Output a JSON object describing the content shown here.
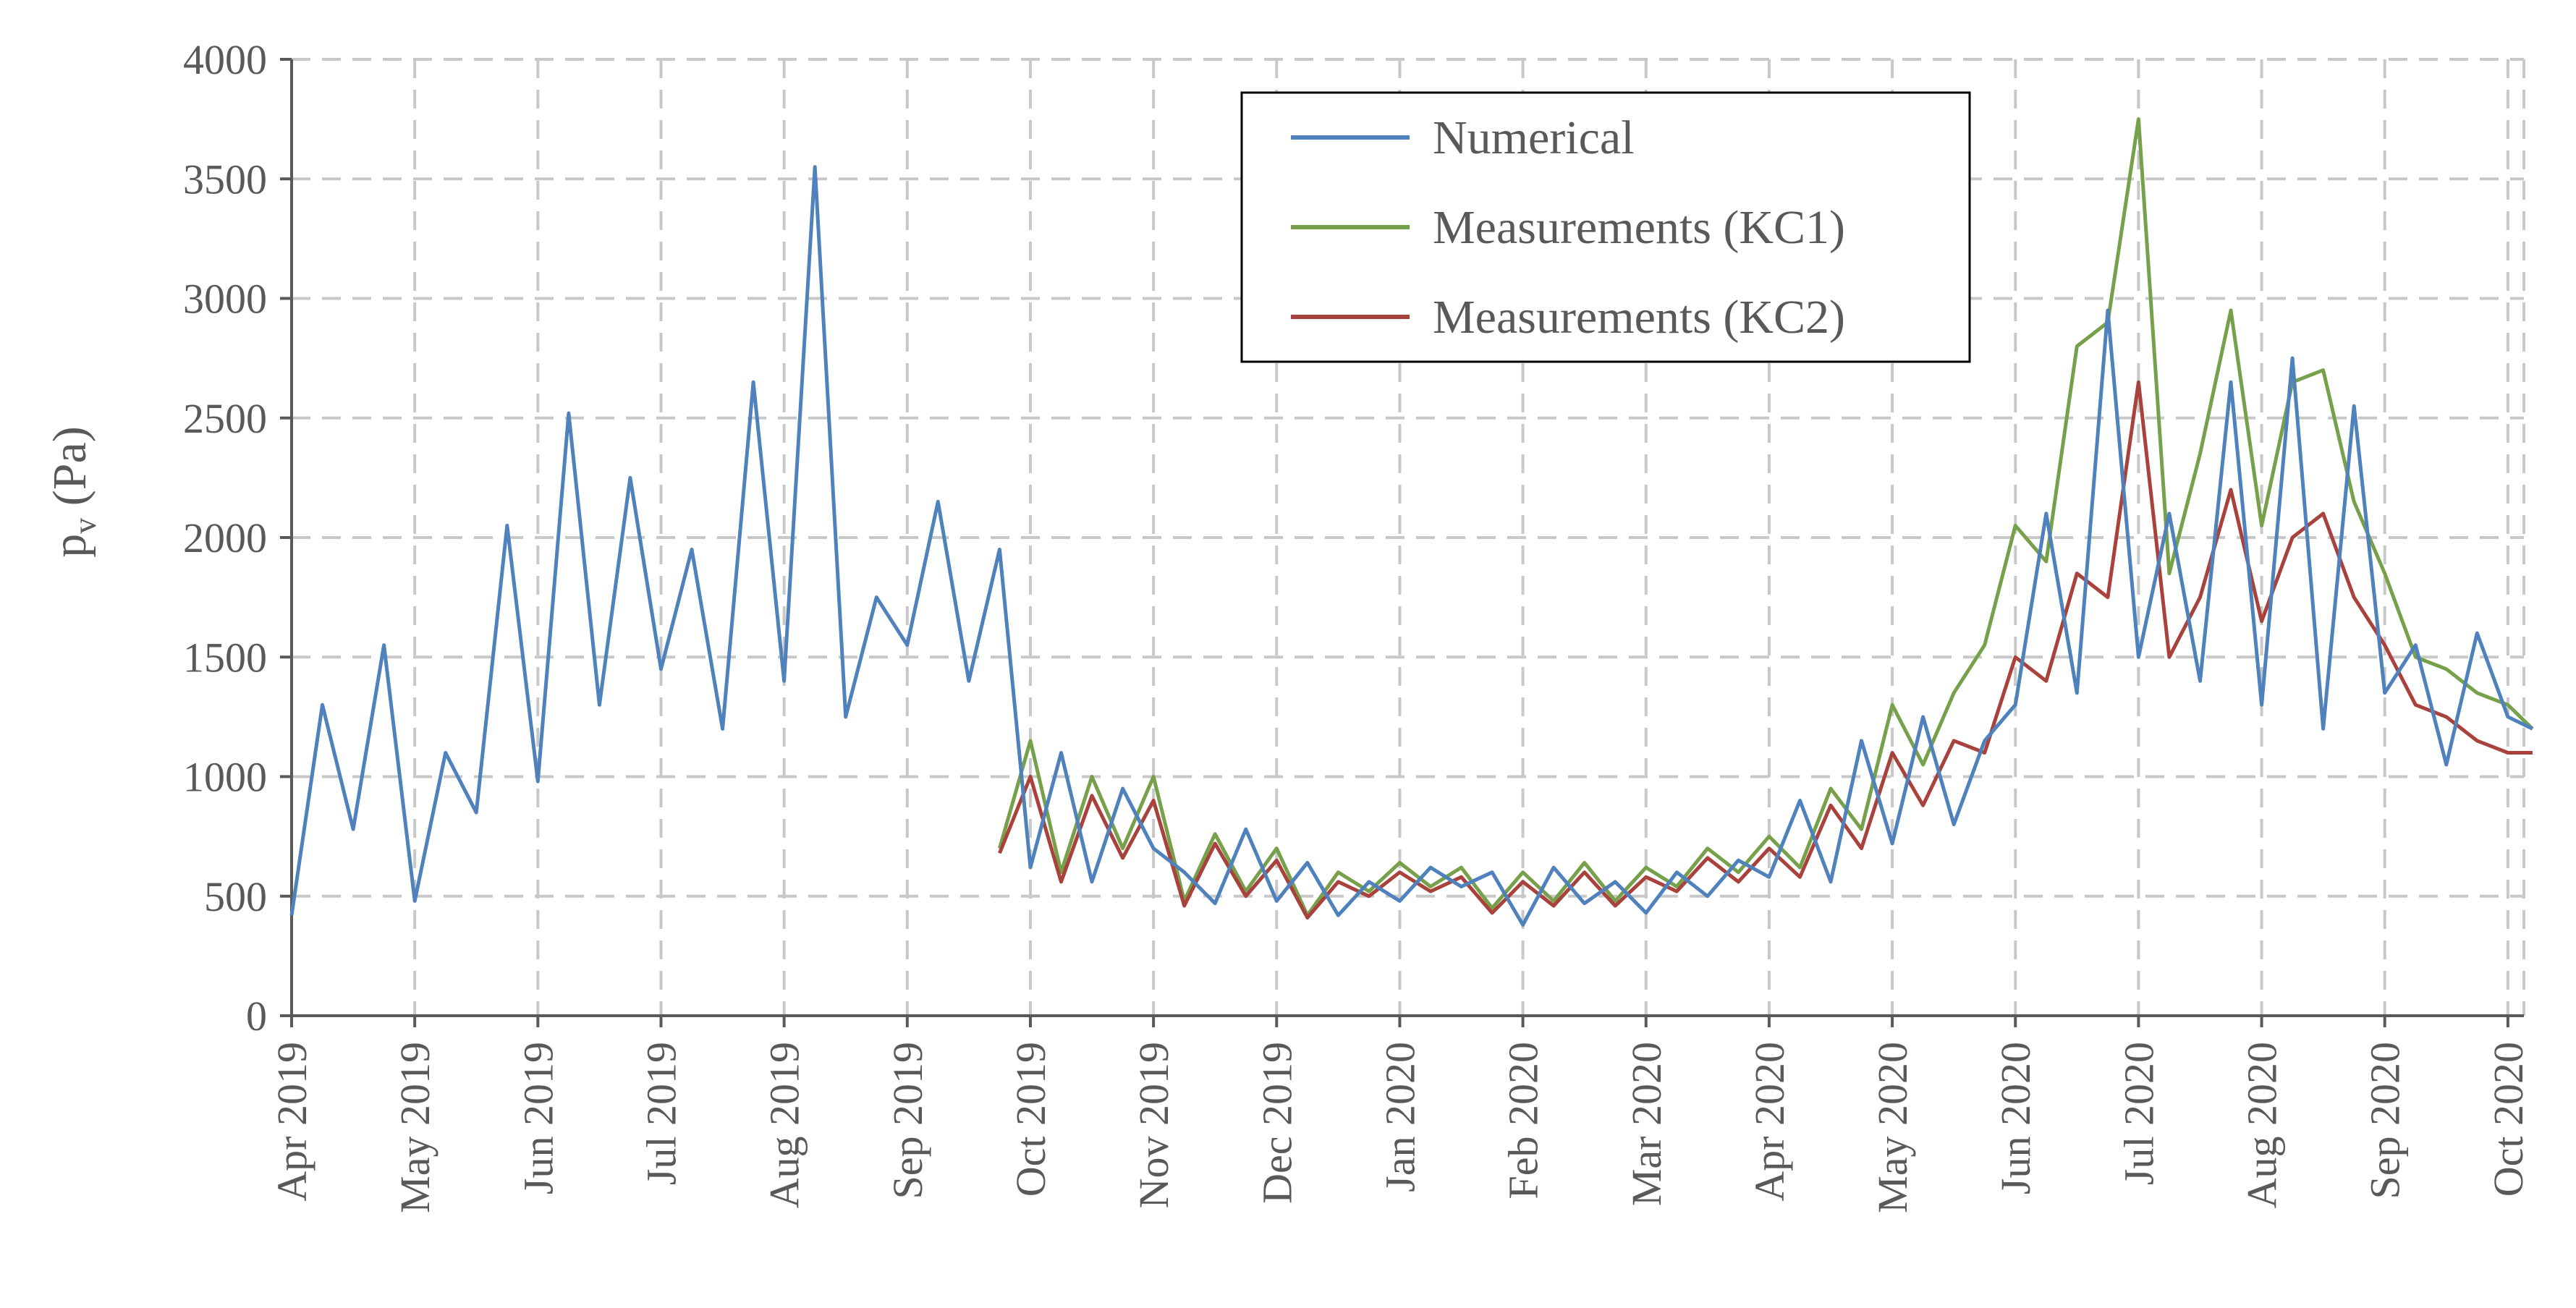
{
  "chart_data": {
    "type": "line",
    "title": "",
    "xlabel": "",
    "ylabel": "p",
    "ylabel_sub": "v",
    "ylabel_unit": " (Pa)",
    "ylim": [
      0,
      4000
    ],
    "yticks": [
      0,
      500,
      1000,
      1500,
      2000,
      2500,
      3000,
      3500,
      4000
    ],
    "grid": true,
    "legend_position": "top-center",
    "x_months": [
      "Apr 2019",
      "May 2019",
      "Jun 2019",
      "Jul 2019",
      "Aug 2019",
      "Sep 2019",
      "Oct 2019",
      "Nov 2019",
      "Dec 2019",
      "Jan 2020",
      "Feb 2020",
      "Mar 2020",
      "Apr 2020",
      "May 2020",
      "Jun 2020",
      "Jul 2020",
      "Aug 2020",
      "Sep 2020",
      "Oct 2020"
    ],
    "x_unit": "month index (0 = Apr 2019), weekly samples",
    "series": [
      {
        "name": "Numerical",
        "color": "#4f81bd",
        "x": [
          0,
          0.25,
          0.5,
          0.75,
          1,
          1.25,
          1.5,
          1.75,
          2,
          2.25,
          2.5,
          2.75,
          3,
          3.25,
          3.5,
          3.75,
          4,
          4.25,
          4.5,
          4.75,
          5,
          5.25,
          5.5,
          5.75,
          6,
          6.25,
          6.5,
          6.75,
          7,
          7.25,
          7.5,
          7.75,
          8,
          8.25,
          8.5,
          8.75,
          9,
          9.25,
          9.5,
          9.75,
          10,
          10.25,
          10.5,
          10.75,
          11,
          11.25,
          11.5,
          11.75,
          12,
          12.25,
          12.5,
          12.75,
          13,
          13.25,
          13.5,
          13.75,
          14,
          14.25,
          14.5,
          14.75,
          15,
          15.25,
          15.5,
          15.75,
          16,
          16.25,
          16.5,
          16.75,
          17,
          17.25,
          17.5,
          17.75,
          18,
          18.2
        ],
        "y": [
          420,
          1300,
          780,
          1550,
          480,
          1100,
          850,
          2050,
          980,
          2520,
          1300,
          2250,
          1450,
          1950,
          1200,
          2650,
          1400,
          3550,
          1250,
          1750,
          1550,
          2150,
          1400,
          1950,
          620,
          1100,
          560,
          950,
          700,
          600,
          470,
          780,
          480,
          640,
          420,
          560,
          480,
          620,
          540,
          600,
          380,
          620,
          470,
          560,
          430,
          600,
          500,
          650,
          580,
          900,
          560,
          1150,
          720,
          1250,
          800,
          1150,
          1300,
          2100,
          1350,
          2950,
          1500,
          2100,
          1400,
          2650,
          1300,
          2750,
          1200,
          2550,
          1350,
          1550,
          1050,
          1600,
          1250,
          1200
        ]
      },
      {
        "name": "Measurements (KC1)",
        "color": "#77a04a",
        "x": [
          5.75,
          6,
          6.25,
          6.5,
          6.75,
          7,
          7.25,
          7.5,
          7.75,
          8,
          8.25,
          8.5,
          8.75,
          9,
          9.25,
          9.5,
          9.75,
          10,
          10.25,
          10.5,
          10.75,
          11,
          11.25,
          11.5,
          11.75,
          12,
          12.25,
          12.5,
          12.75,
          13,
          13.25,
          13.5,
          13.75,
          14,
          14.25,
          14.5,
          14.75,
          15,
          15.25,
          15.5,
          15.75,
          16,
          16.25,
          16.5,
          16.75,
          17,
          17.25,
          17.5,
          17.75,
          18,
          18.2
        ],
        "y": [
          700,
          1150,
          600,
          1000,
          700,
          1000,
          480,
          760,
          520,
          700,
          420,
          600,
          520,
          640,
          540,
          620,
          450,
          600,
          480,
          640,
          480,
          620,
          540,
          700,
          600,
          750,
          620,
          950,
          780,
          1300,
          1050,
          1350,
          1550,
          2050,
          1900,
          2800,
          2900,
          3750,
          1850,
          2350,
          2950,
          2050,
          2650,
          2700,
          2150,
          1850,
          1500,
          1450,
          1350,
          1300,
          1200
        ]
      },
      {
        "name": "Measurements (KC2)",
        "color": "#a9423c",
        "x": [
          5.75,
          6,
          6.25,
          6.5,
          6.75,
          7,
          7.25,
          7.5,
          7.75,
          8,
          8.25,
          8.5,
          8.75,
          9,
          9.25,
          9.5,
          9.75,
          10,
          10.25,
          10.5,
          10.75,
          11,
          11.25,
          11.5,
          11.75,
          12,
          12.25,
          12.5,
          12.75,
          13,
          13.25,
          13.5,
          13.75,
          14,
          14.25,
          14.5,
          14.75,
          15,
          15.25,
          15.5,
          15.75,
          16,
          16.25,
          16.5,
          16.75,
          17,
          17.25,
          17.5,
          17.75,
          18,
          18.2
        ],
        "y": [
          680,
          1000,
          560,
          920,
          660,
          900,
          460,
          720,
          500,
          650,
          410,
          560,
          500,
          600,
          520,
          580,
          430,
          560,
          460,
          600,
          460,
          580,
          520,
          660,
          560,
          700,
          580,
          880,
          700,
          1100,
          880,
          1150,
          1100,
          1500,
          1400,
          1850,
          1750,
          2650,
          1500,
          1750,
          2200,
          1650,
          2000,
          2100,
          1750,
          1550,
          1300,
          1250,
          1150,
          1100,
          1100
        ]
      }
    ]
  }
}
